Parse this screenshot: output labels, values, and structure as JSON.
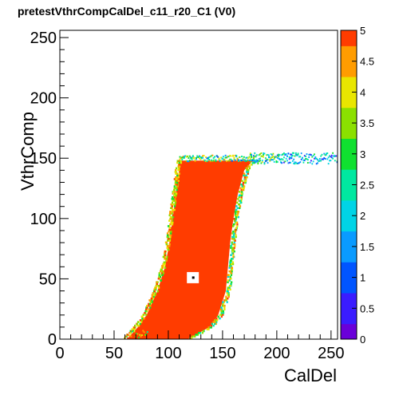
{
  "title": "pretestVthrCompCalDel_c11_r20_C1 (V0)",
  "chart_data": {
    "type": "heatmap",
    "title": "pretestVthrCompCalDel_c11_r20_C1 (V0)",
    "xlabel": "CalDel",
    "ylabel": "VthrComp",
    "xlim": [
      0,
      256
    ],
    "ylim": [
      0,
      256
    ],
    "zlim": [
      0,
      5
    ],
    "x_ticks": [
      "0",
      "50",
      "100",
      "150",
      "200",
      "250"
    ],
    "y_ticks": [
      "0",
      "50",
      "100",
      "150",
      "200",
      "250"
    ],
    "z_ticks": [
      "0",
      "0.5",
      "1",
      "1.5",
      "2",
      "2.5",
      "3",
      "3.5",
      "4",
      "4.5",
      "5"
    ],
    "region": {
      "description": "Saturated (z=5) band bounded by left and right edges per VthrComp row, capped near VthrComp 148-152 with a tail extending to CalDel 256",
      "value": 5,
      "left_edge": [
        [
          0,
          62
        ],
        [
          10,
          72
        ],
        [
          20,
          80
        ],
        [
          40,
          90
        ],
        [
          60,
          97
        ],
        [
          80,
          101
        ],
        [
          100,
          104
        ],
        [
          120,
          107
        ],
        [
          140,
          110
        ],
        [
          148,
          112
        ]
      ],
      "right_edge": [
        [
          0,
          118
        ],
        [
          10,
          138
        ],
        [
          20,
          146
        ],
        [
          40,
          153
        ],
        [
          60,
          155
        ],
        [
          80,
          157
        ],
        [
          100,
          160
        ],
        [
          120,
          164
        ],
        [
          140,
          170
        ],
        [
          148,
          178
        ]
      ],
      "top": 148,
      "tail": {
        "y_range": [
          146,
          155
        ],
        "x_range": [
          175,
          256
        ]
      }
    },
    "hole": {
      "x": 123,
      "y": 51
    },
    "grid": false,
    "legend": "right colorbar"
  }
}
